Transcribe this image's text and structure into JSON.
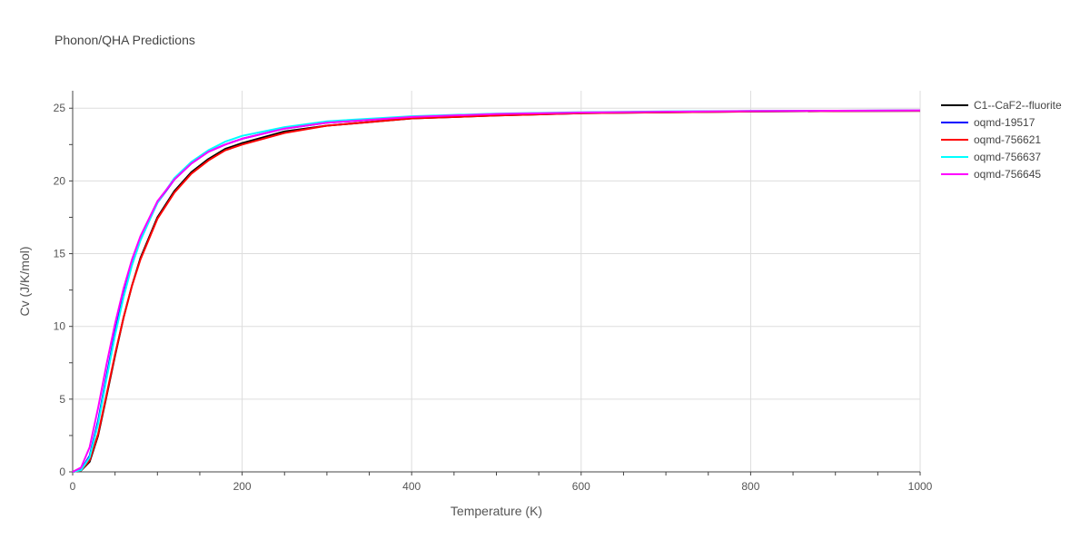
{
  "chart_data": {
    "type": "line",
    "title": "Phonon/QHA Predictions",
    "xlabel": "Temperature (K)",
    "ylabel": "Cv (J/K/mol)",
    "xlim": [
      0,
      1000
    ],
    "ylim": [
      0,
      26.2
    ],
    "x_ticks": [
      0,
      200,
      400,
      600,
      800,
      1000
    ],
    "y_ticks": [
      0,
      5,
      10,
      15,
      20,
      25
    ],
    "grid": true,
    "legend_position": "right",
    "series": [
      {
        "name": "C1--CaF2--fluorite",
        "color": "#000000",
        "x": [
          0,
          10,
          20,
          30,
          40,
          50,
          60,
          70,
          80,
          100,
          120,
          140,
          160,
          180,
          200,
          250,
          300,
          400,
          500,
          600,
          700,
          800,
          900,
          1000
        ],
        "y": [
          0,
          0.1,
          0.7,
          2.5,
          5.2,
          8.0,
          10.6,
          12.8,
          14.7,
          17.5,
          19.3,
          20.6,
          21.5,
          22.2,
          22.6,
          23.4,
          23.8,
          24.3,
          24.5,
          24.65,
          24.72,
          24.77,
          24.8,
          24.82
        ]
      },
      {
        "name": "oqmd-19517",
        "color": "#0000ff",
        "x": [
          0,
          10,
          20,
          30,
          40,
          50,
          60,
          70,
          80,
          100,
          120,
          140,
          160,
          180,
          200,
          250,
          300,
          400,
          500,
          600,
          700,
          800,
          900,
          1000
        ],
        "y": [
          0,
          0.15,
          1.1,
          3.5,
          6.6,
          9.6,
          12.2,
          14.3,
          16.0,
          18.5,
          20.1,
          21.2,
          22.0,
          22.5,
          22.9,
          23.6,
          24.0,
          24.4,
          24.6,
          24.7,
          24.76,
          24.8,
          24.82,
          24.84
        ]
      },
      {
        "name": "oqmd-756621",
        "color": "#ff0000",
        "x": [
          0,
          10,
          20,
          30,
          40,
          50,
          60,
          70,
          80,
          100,
          120,
          140,
          160,
          180,
          200,
          250,
          300,
          400,
          500,
          600,
          700,
          800,
          900,
          1000
        ],
        "y": [
          0,
          0.1,
          0.8,
          2.6,
          5.3,
          8.1,
          10.6,
          12.8,
          14.6,
          17.4,
          19.2,
          20.5,
          21.4,
          22.1,
          22.5,
          23.3,
          23.8,
          24.3,
          24.5,
          24.65,
          24.72,
          24.77,
          24.8,
          24.82
        ]
      },
      {
        "name": "oqmd-756637",
        "color": "#00ffff",
        "x": [
          0,
          10,
          20,
          30,
          40,
          50,
          60,
          70,
          80,
          100,
          120,
          140,
          160,
          180,
          200,
          250,
          300,
          400,
          500,
          600,
          700,
          800,
          900,
          1000
        ],
        "y": [
          0,
          0.12,
          1.0,
          3.3,
          6.4,
          9.4,
          12.0,
          14.2,
          15.9,
          18.5,
          20.2,
          21.3,
          22.1,
          22.7,
          23.1,
          23.7,
          24.1,
          24.45,
          24.62,
          24.72,
          24.78,
          24.81,
          24.83,
          24.85
        ]
      },
      {
        "name": "oqmd-756645",
        "color": "#ff00ff",
        "x": [
          0,
          10,
          20,
          30,
          40,
          50,
          60,
          70,
          80,
          100,
          120,
          140,
          160,
          180,
          200,
          250,
          300,
          400,
          500,
          600,
          700,
          800,
          900,
          1000
        ],
        "y": [
          0,
          0.3,
          1.7,
          4.4,
          7.4,
          10.2,
          12.6,
          14.6,
          16.2,
          18.6,
          20.1,
          21.2,
          22.0,
          22.5,
          22.9,
          23.6,
          24.0,
          24.4,
          24.6,
          24.7,
          24.76,
          24.8,
          24.83,
          24.85
        ]
      }
    ]
  }
}
